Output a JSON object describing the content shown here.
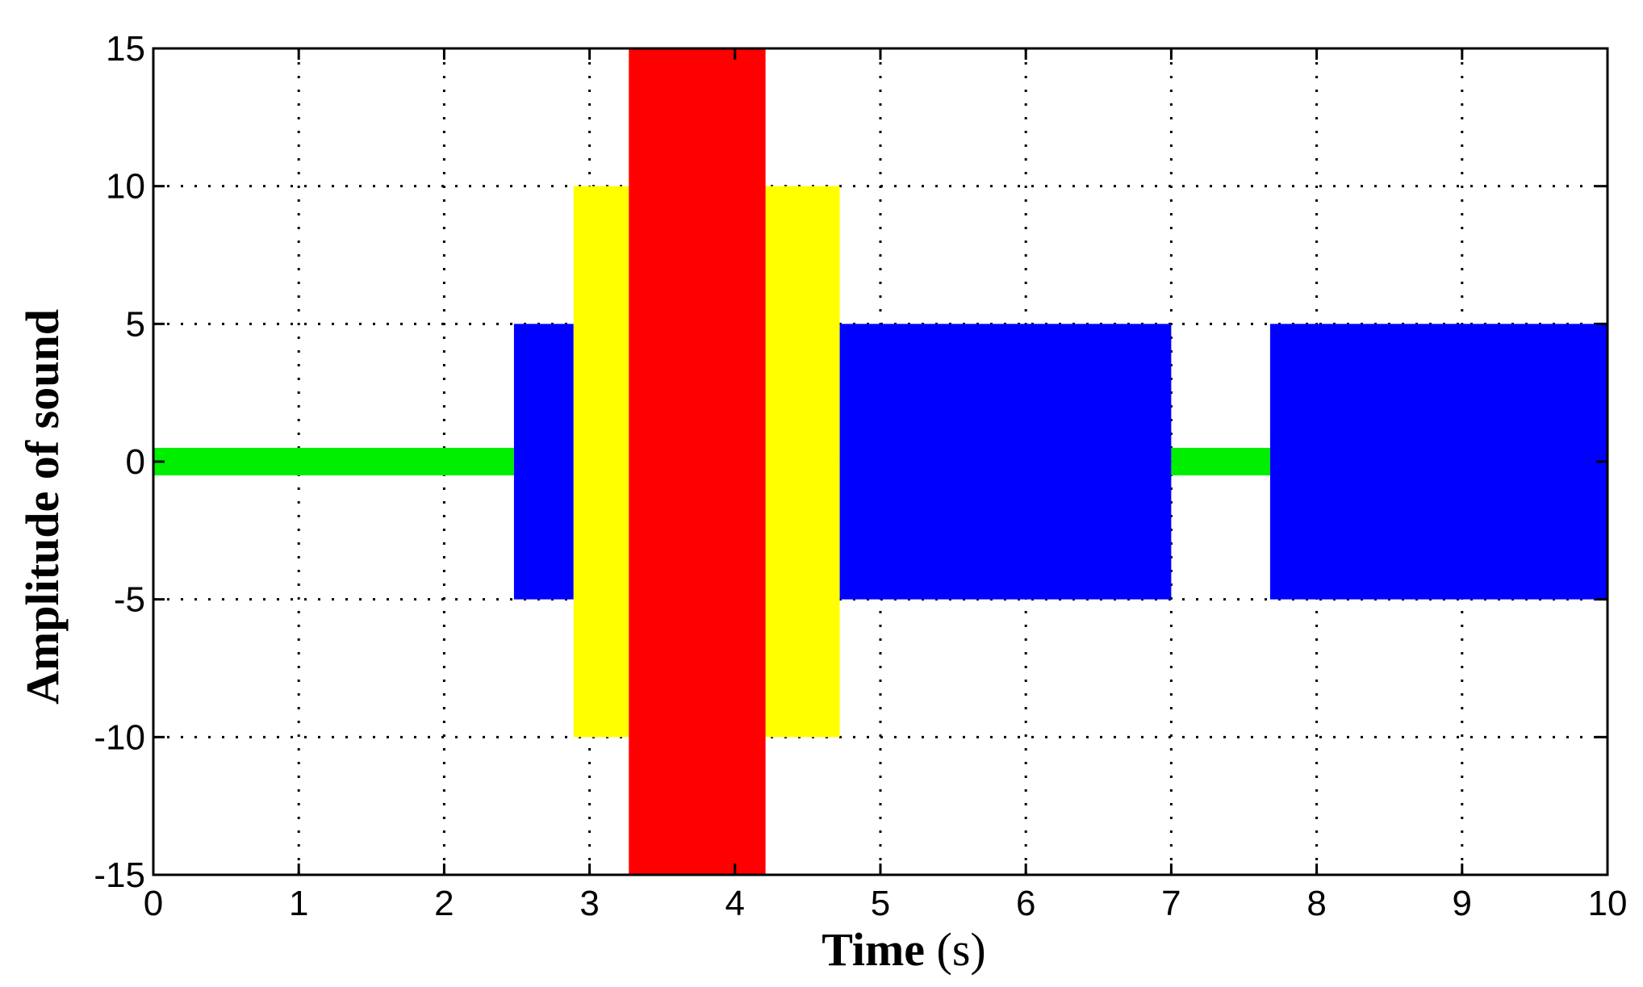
{
  "chart_data": {
    "type": "area",
    "title": "",
    "xlabel": "Time",
    "xlabel_unit": "(s)",
    "ylabel": "Amplitude of sound",
    "xlim": [
      0,
      10
    ],
    "ylim": [
      -15,
      15
    ],
    "xticks": [
      "0",
      "1",
      "2",
      "3",
      "4",
      "5",
      "6",
      "7",
      "8",
      "9",
      "10"
    ],
    "yticks": [
      "-15",
      "-10",
      "-5",
      "0",
      "5",
      "10",
      "15"
    ],
    "grid": true,
    "grid_style": "dotted",
    "series": [
      {
        "color": "#00ee00",
        "segments": [
          {
            "x": [
              0,
              2.48
            ],
            "amplitude": 0.5
          },
          {
            "x": [
              7.0,
              7.68
            ],
            "amplitude": 0.5
          }
        ]
      },
      {
        "color": "#0000ff",
        "segments": [
          {
            "x": [
              2.48,
              2.89
            ],
            "amplitude": 5
          },
          {
            "x": [
              4.72,
              7.0
            ],
            "amplitude": 5
          },
          {
            "x": [
              7.68,
              10
            ],
            "amplitude": 5
          }
        ]
      },
      {
        "color": "#ffff00",
        "segments": [
          {
            "x": [
              2.89,
              3.27
            ],
            "amplitude": 10
          },
          {
            "x": [
              4.21,
              4.72
            ],
            "amplitude": 10
          }
        ]
      },
      {
        "color": "#ff0000",
        "segments": [
          {
            "x": [
              3.27,
              4.21
            ],
            "amplitude": 15
          }
        ]
      }
    ]
  }
}
